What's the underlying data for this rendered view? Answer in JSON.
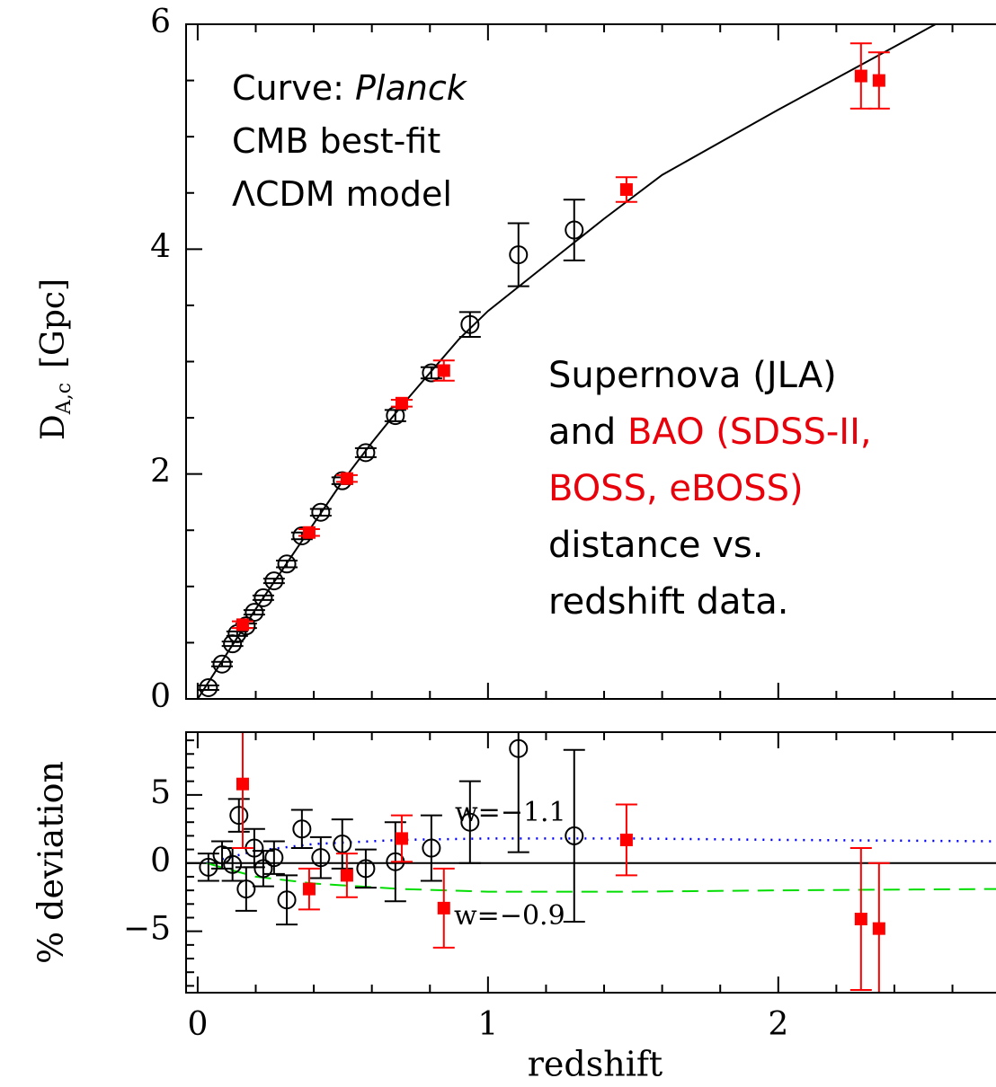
{
  "chart_data": [
    {
      "type": "scatter",
      "ylabel": "D",
      "ylabel_sub": "A,c",
      "ylabel_unit": "[Gpc]",
      "xlim": [
        -0.04,
        2.75
      ],
      "xticks": [
        0,
        1,
        2
      ],
      "xminor": [
        0.2,
        0.4,
        0.6,
        0.8,
        1.2,
        1.4,
        1.6,
        1.8,
        2.2,
        2.4,
        2.6
      ],
      "show_xtick_labels": false,
      "ylim": [
        0,
        6
      ],
      "yticks": [
        0,
        2,
        4,
        6
      ],
      "yminor": [
        0.5,
        1,
        1.5,
        2.5,
        3,
        3.5,
        4.5,
        5,
        5.5
      ],
      "annotations": [
        {
          "lines": [
            [
              {
                "text": "Curve: "
              },
              {
                "text": "Planck",
                "italic": true
              }
            ],
            [
              {
                "text": "CMB best-fit"
              }
            ],
            [
              {
                "text": "ΛCDM model"
              }
            ]
          ]
        },
        {
          "lines": [
            [
              {
                "text": "Supernova (JLA)"
              }
            ],
            [
              {
                "text": "and "
              },
              {
                "text": "BAO (SDSS-II,",
                "color": "#e8000b"
              }
            ],
            [
              {
                "text": "BOSS, eBOSS)",
                "color": "#e8000b"
              }
            ],
            [
              {
                "text": "distance vs."
              }
            ],
            [
              {
                "text": "redshift data."
              }
            ]
          ]
        }
      ],
      "series": [
        {
          "marker": "line",
          "color": "#000000",
          "x": [
            0,
            0.1,
            0.2,
            0.3,
            0.4,
            0.5,
            0.6,
            0.7,
            0.8,
            0.9,
            1.0,
            1.2,
            1.4,
            1.6,
            1.8,
            2.0,
            2.2,
            2.4,
            2.52,
            2.6
          ],
          "values": [
            0,
            0.4,
            0.8,
            1.18,
            1.56,
            1.94,
            2.28,
            2.6,
            2.9,
            3.2,
            3.45,
            3.86,
            4.27,
            4.66,
            4.95,
            5.24,
            5.52,
            5.8,
            5.97,
            6.08
          ]
        },
        {
          "marker": "circle",
          "color": "#000000",
          "x": [
            0.037,
            0.084,
            0.12,
            0.136,
            0.167,
            0.195,
            0.226,
            0.263,
            0.307,
            0.359,
            0.424,
            0.498,
            0.579,
            0.681,
            0.805,
            0.938,
            1.105,
            1.297
          ],
          "values": [
            0.1,
            0.31,
            0.49,
            0.58,
            0.65,
            0.77,
            0.9,
            1.05,
            1.2,
            1.45,
            1.66,
            1.94,
            2.19,
            2.52,
            2.9,
            3.33,
            3.95,
            4.17
          ],
          "errors": [
            0.02,
            0.02,
            0.02,
            0.02,
            0.02,
            0.02,
            0.02,
            0.02,
            0.03,
            0.03,
            0.03,
            0.03,
            0.04,
            0.05,
            0.05,
            0.11,
            0.28,
            0.27
          ]
        },
        {
          "marker": "square",
          "color": "#ff0000",
          "x": [
            0.155,
            0.384,
            0.514,
            0.703,
            0.848,
            1.477,
            2.285,
            2.347
          ],
          "values": [
            0.66,
            1.48,
            1.96,
            2.63,
            2.92,
            4.53,
            5.54,
            5.5
          ],
          "errors": [
            0.03,
            0.03,
            0.03,
            0.03,
            0.09,
            0.11,
            0.29,
            0.25
          ]
        }
      ]
    },
    {
      "type": "scatter",
      "ylabel": "% deviation",
      "xlabel": "redshift",
      "xlim": [
        -0.04,
        2.75
      ],
      "xticks": [
        0,
        1,
        2
      ],
      "xminor": [
        0.2,
        0.4,
        0.6,
        0.8,
        1.2,
        1.4,
        1.6,
        1.8,
        2.2,
        2.4,
        2.6
      ],
      "show_xtick_labels": true,
      "ylim": [
        -9.5,
        9.6
      ],
      "yticks": [
        {
          "value": -5,
          "label": "−5"
        },
        0,
        5
      ],
      "yminor": [
        -9,
        -8,
        -7,
        -6,
        -4,
        -3,
        -2,
        -1,
        1,
        2,
        3,
        4,
        6,
        7,
        8,
        9
      ],
      "annotations": [
        {
          "lines": [
            [
              {
                "text": "w=−1.1"
              }
            ]
          ]
        },
        {
          "lines": [
            [
              {
                "text": "w=−0.9"
              }
            ]
          ]
        }
      ],
      "series": [
        {
          "marker": "line",
          "color": "#000000",
          "x": [
            -0.04,
            2.75
          ],
          "values": [
            0,
            0
          ]
        },
        {
          "marker": "line",
          "dash": "dotted",
          "color": "#0000ff",
          "x": [
            0.03,
            0.2,
            0.4,
            0.7,
            1.0,
            1.5,
            2.0,
            2.75
          ],
          "values": [
            0,
            0.9,
            1.4,
            1.7,
            1.8,
            1.8,
            1.7,
            1.6
          ]
        },
        {
          "marker": "line",
          "dash": "dashed",
          "color": "#00dd00",
          "x": [
            0.03,
            0.2,
            0.4,
            0.7,
            1.0,
            1.5,
            2.0,
            2.75
          ],
          "values": [
            0,
            -1.0,
            -1.5,
            -1.9,
            -2.1,
            -2.1,
            -2.0,
            -1.9
          ]
        },
        {
          "marker": "circle",
          "color": "#000000",
          "x": [
            0.037,
            0.084,
            0.12,
            0.142,
            0.167,
            0.195,
            0.226,
            0.263,
            0.307,
            0.359,
            0.424,
            0.498,
            0.579,
            0.681,
            0.805,
            0.938,
            1.105,
            1.297
          ],
          "values": [
            -0.3,
            0.6,
            -0.1,
            3.5,
            -1.9,
            1.1,
            -0.4,
            0.4,
            -2.7,
            2.5,
            0.4,
            1.4,
            -0.4,
            0.1,
            1.1,
            3.0,
            8.4,
            2.0
          ],
          "errors": [
            1.0,
            1.0,
            1.2,
            1.2,
            1.6,
            1.4,
            1.3,
            1.2,
            1.8,
            1.4,
            1.5,
            1.8,
            1.4,
            2.9,
            2.4,
            3.0,
            7.6,
            6.3
          ]
        },
        {
          "marker": "square",
          "color": "#ff0000",
          "x": [
            0.155,
            0.384,
            0.514,
            0.703,
            0.848,
            1.477,
            2.285,
            2.347
          ],
          "values": [
            5.8,
            -1.9,
            -0.9,
            1.8,
            -3.3,
            1.7,
            -4.1,
            -4.8
          ],
          "errors": [
            4.7,
            1.5,
            1.6,
            1.7,
            2.9,
            2.6,
            5.2,
            4.8
          ]
        }
      ]
    }
  ]
}
